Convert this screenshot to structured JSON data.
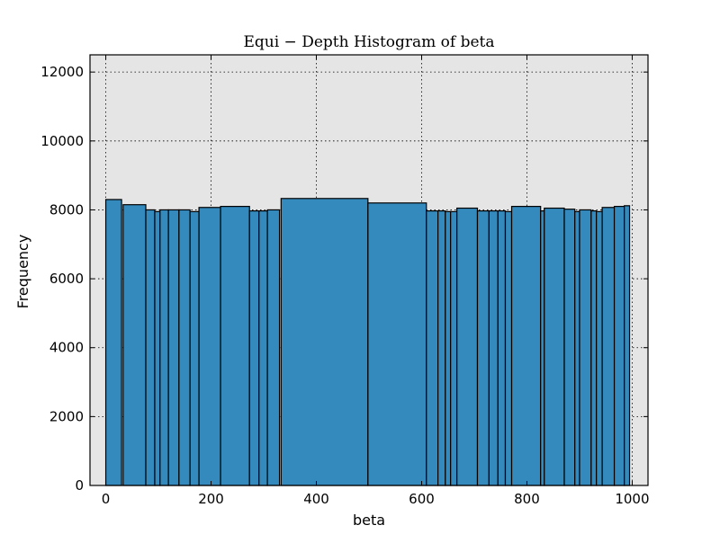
{
  "chart_data": {
    "type": "bar",
    "title": "Equi − Depth Histogram of beta",
    "xlabel": "beta",
    "ylabel": "Frequency",
    "xlim": [
      -30,
      1030
    ],
    "ylim": [
      0,
      12500
    ],
    "xticks": [
      0,
      200,
      400,
      600,
      800,
      1000
    ],
    "yticks": [
      0,
      2000,
      4000,
      6000,
      8000,
      10000,
      12000
    ],
    "grid": true,
    "bar_color": "#348abd",
    "edge_color": "#000000",
    "background_color": "#e5e5e5",
    "bins": [
      {
        "left": 0,
        "right": 30,
        "value": 8300
      },
      {
        "left": 33,
        "right": 76,
        "value": 8150
      },
      {
        "left": 76,
        "right": 93,
        "value": 8000
      },
      {
        "left": 93,
        "right": 103,
        "value": 7950
      },
      {
        "left": 103,
        "right": 119,
        "value": 8000
      },
      {
        "left": 119,
        "right": 139,
        "value": 8000
      },
      {
        "left": 139,
        "right": 160,
        "value": 8000
      },
      {
        "left": 160,
        "right": 177,
        "value": 7950
      },
      {
        "left": 177,
        "right": 218,
        "value": 8070
      },
      {
        "left": 218,
        "right": 273,
        "value": 8100
      },
      {
        "left": 273,
        "right": 291,
        "value": 7970
      },
      {
        "left": 291,
        "right": 307,
        "value": 7970
      },
      {
        "left": 307,
        "right": 330,
        "value": 8000
      },
      {
        "left": 333,
        "right": 498,
        "value": 8330
      },
      {
        "left": 498,
        "right": 609,
        "value": 8200
      },
      {
        "left": 609,
        "right": 631,
        "value": 7970
      },
      {
        "left": 631,
        "right": 645,
        "value": 7970
      },
      {
        "left": 645,
        "right": 655,
        "value": 7950
      },
      {
        "left": 655,
        "right": 667,
        "value": 7950
      },
      {
        "left": 667,
        "right": 706,
        "value": 8050
      },
      {
        "left": 706,
        "right": 728,
        "value": 7970
      },
      {
        "left": 728,
        "right": 745,
        "value": 7970
      },
      {
        "left": 745,
        "right": 759,
        "value": 7970
      },
      {
        "left": 759,
        "right": 771,
        "value": 7950
      },
      {
        "left": 771,
        "right": 826,
        "value": 8100
      },
      {
        "left": 826,
        "right": 833,
        "value": 7970
      },
      {
        "left": 833,
        "right": 871,
        "value": 8050
      },
      {
        "left": 871,
        "right": 891,
        "value": 8020
      },
      {
        "left": 891,
        "right": 900,
        "value": 7950
      },
      {
        "left": 900,
        "right": 922,
        "value": 8000
      },
      {
        "left": 922,
        "right": 932,
        "value": 7970
      },
      {
        "left": 932,
        "right": 943,
        "value": 7950
      },
      {
        "left": 943,
        "right": 966,
        "value": 8070
      },
      {
        "left": 966,
        "right": 985,
        "value": 8100
      },
      {
        "left": 985,
        "right": 995,
        "value": 8120
      }
    ]
  }
}
